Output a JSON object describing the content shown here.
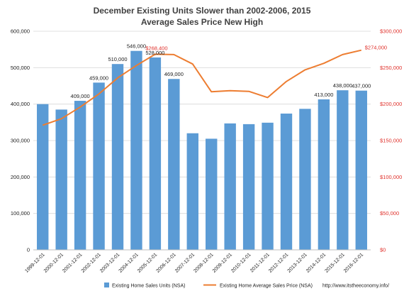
{
  "chart_data": {
    "type": "bar",
    "title": "December Existing Units Slower than 2002-2006, 2015",
    "subtitle": "Average Sales Price New High",
    "categories": [
      "1999-12-01",
      "2000-12-01",
      "2001-12-01",
      "2002-12-01",
      "2003-12-01",
      "2004-12-01",
      "2005-12-01",
      "2006-12-01",
      "2007-12-01",
      "2008-12-01",
      "2009-12-01",
      "2010-12-01",
      "2011-12-01",
      "2012-12-01",
      "2013-12-01",
      "2014-12-01",
      "2015-12-01",
      "2016-12-01"
    ],
    "series": [
      {
        "name": "Existing Home Sales Units (NSA)",
        "type": "bar",
        "axis": "left",
        "color": "#5b9bd5",
        "values": [
          400000,
          385000,
          409000,
          459000,
          510000,
          546000,
          528000,
          469000,
          320000,
          305000,
          347000,
          345000,
          349000,
          374000,
          387000,
          413000,
          438000,
          437000
        ]
      },
      {
        "name": "Existing Home Average Sales Price (NSA)",
        "type": "line",
        "axis": "right",
        "color": "#ed7d31",
        "values": [
          171000,
          180000,
          196000,
          214000,
          236000,
          253000,
          268400,
          268000,
          255000,
          217000,
          218500,
          217500,
          209000,
          231000,
          247000,
          256000,
          268000,
          274000
        ]
      }
    ],
    "bar_labels": [
      {
        "index": 2,
        "text": "409,000"
      },
      {
        "index": 3,
        "text": "459,000"
      },
      {
        "index": 4,
        "text": "510,000"
      },
      {
        "index": 5,
        "text": "546,000"
      },
      {
        "index": 6,
        "text": "528,000"
      },
      {
        "index": 7,
        "text": "469,000"
      },
      {
        "index": 15,
        "text": "413,000"
      },
      {
        "index": 16,
        "text": "438,000"
      },
      {
        "index": 17,
        "text": "437,000"
      }
    ],
    "price_labels": [
      {
        "index": 6,
        "text": "$268,400"
      },
      {
        "index": 17,
        "text": "$274,000"
      }
    ],
    "y_left": {
      "min": 0,
      "max": 600000,
      "ticks": [
        "0",
        "100,000",
        "200,000",
        "300,000",
        "400,000",
        "500,000",
        "600,000"
      ]
    },
    "y_right": {
      "min": 0,
      "max": 300000,
      "ticks": [
        "$0",
        "$50,000",
        "$100,000",
        "$150,000",
        "$200,000",
        "$250,000",
        "$300,000"
      ]
    },
    "grid": true,
    "legend_position": "bottom",
    "source_text": "http://www.itstheeconomy.info/"
  }
}
